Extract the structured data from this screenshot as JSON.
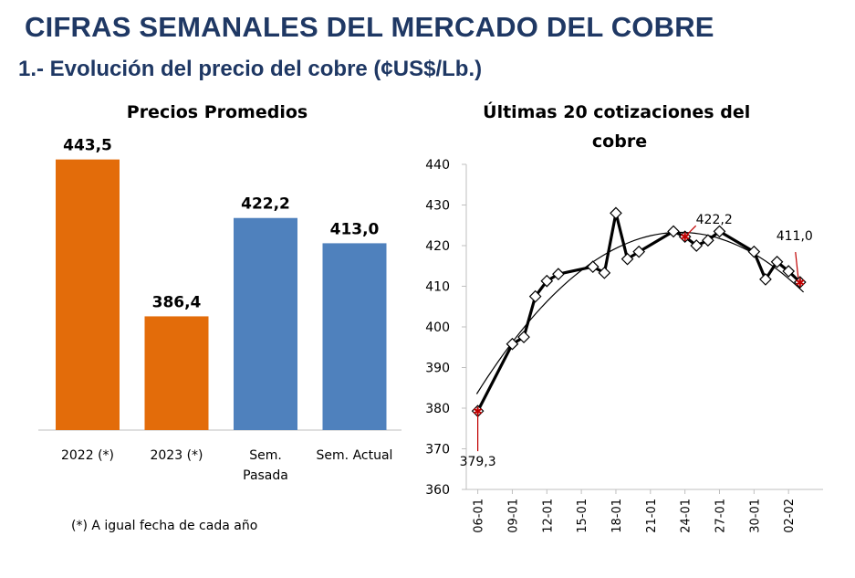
{
  "page": {
    "title": "CIFRAS SEMANALES DEL MERCADO DEL COBRE",
    "section_title": "1.- Evolución del precio del cobre (¢US$/Lb.)",
    "footnote": "(*) A igual fecha de cada año"
  },
  "colors": {
    "title": "#1f3864",
    "bar_orange": "#e36c0a",
    "bar_blue": "#4f81bd",
    "line": "#000000",
    "annotation_marker": "#c00000",
    "annotation_leader": "#c00000"
  },
  "chart_data": [
    {
      "type": "bar",
      "title": "Precios Promedios",
      "categories": [
        [
          "2022 (*)"
        ],
        [
          "2023 (*)"
        ],
        [
          "Sem.",
          "Pasada"
        ],
        [
          "Sem. Actual"
        ]
      ],
      "values": [
        443.5,
        386.4,
        422.2,
        413.0
      ],
      "value_labels": [
        "443,5",
        "386,4",
        "422,2",
        "413,0"
      ],
      "bar_colors": [
        "#e36c0a",
        "#e36c0a",
        "#4f81bd",
        "#4f81bd"
      ],
      "ylim": [
        345,
        460
      ],
      "grid": false,
      "legend": "none"
    },
    {
      "type": "line",
      "title": "Últimas 20 cotizaciones del cobre",
      "x_ticks": [
        "06-01",
        "09-01",
        "12-01",
        "15-01",
        "18-01",
        "21-01",
        "24-01",
        "27-01",
        "30-01",
        "02-02"
      ],
      "y_ticks": [
        "440",
        "430",
        "420",
        "410",
        "400",
        "390",
        "380",
        "370",
        "360"
      ],
      "ylim": [
        360,
        440
      ],
      "x_day_range": [
        5,
        36
      ],
      "series": [
        {
          "x": [
            "06-01",
            "09-01",
            "10-01",
            "11-01",
            "12-01",
            "13-01",
            "16-01",
            "17-01",
            "18-01",
            "19-01",
            "20-01",
            "23-01",
            "24-01",
            "25-01",
            "26-01",
            "27-01",
            "30-01",
            "31-01",
            "01-02",
            "02-02",
            "03-02"
          ],
          "x_day": [
            6,
            9,
            10,
            11,
            12,
            13,
            16,
            17,
            18,
            19,
            20,
            23,
            24,
            25,
            26,
            27,
            30,
            31,
            32,
            33,
            34
          ],
          "values": [
            379.3,
            395.8,
            397.5,
            407.5,
            411.3,
            413.0,
            414.8,
            413.3,
            428.0,
            416.7,
            418.5,
            423.5,
            422.2,
            420.0,
            421.3,
            423.5,
            418.5,
            411.7,
            416.0,
            413.7,
            411.0
          ],
          "marker": "diamond"
        }
      ],
      "trend": {
        "type": "polynomial",
        "order": 2,
        "x_day_range": [
          5.9,
          34.3
        ]
      },
      "annotations": [
        {
          "label": "379,3",
          "x": "06-01",
          "value": 379.3
        },
        {
          "label": "422,2",
          "x": "24-01",
          "value": 422.2
        },
        {
          "label": "411,0",
          "x": "03-02",
          "value": 411.0
        }
      ],
      "grid": false,
      "legend": "none"
    }
  ]
}
